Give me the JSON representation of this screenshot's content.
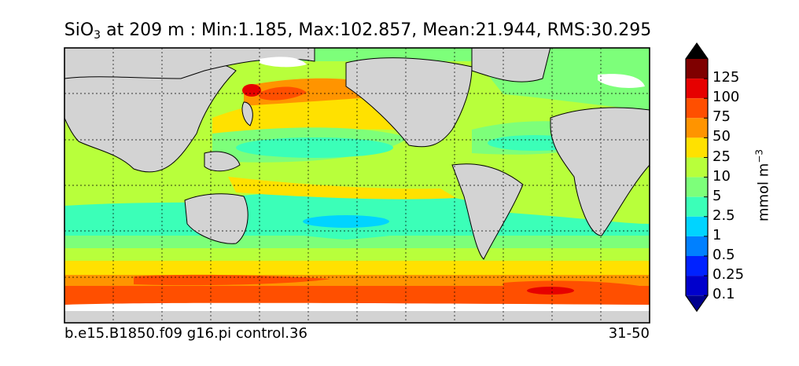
{
  "title": {
    "species_main": "SiO",
    "species_sub": "3",
    "rest": " at 209 m : Min:1.185, Max:102.857, Mean:21.944, RMS:30.295"
  },
  "footer": {
    "run_name": "b.e15.B1850.f09 g16.pi control.36",
    "years": "31-50"
  },
  "colorbar": {
    "unit_main": "mmol m",
    "unit_sup": "−3",
    "ticks": [
      "125",
      "100",
      "75",
      "50",
      "25",
      "10",
      "5",
      "2.5",
      "1",
      "0.5",
      "0.25",
      "0.1"
    ],
    "colors": [
      "#7f0000",
      "#e60000",
      "#ff4f00",
      "#ff9400",
      "#ffe100",
      "#b8ff3b",
      "#7dff7a",
      "#3bffb8",
      "#00d4ff",
      "#0080ff",
      "#0022ff",
      "#0000cc",
      "#00008f"
    ]
  },
  "map": {
    "land_color": "#d3d3d3",
    "ice_color": "#ffffff"
  }
}
